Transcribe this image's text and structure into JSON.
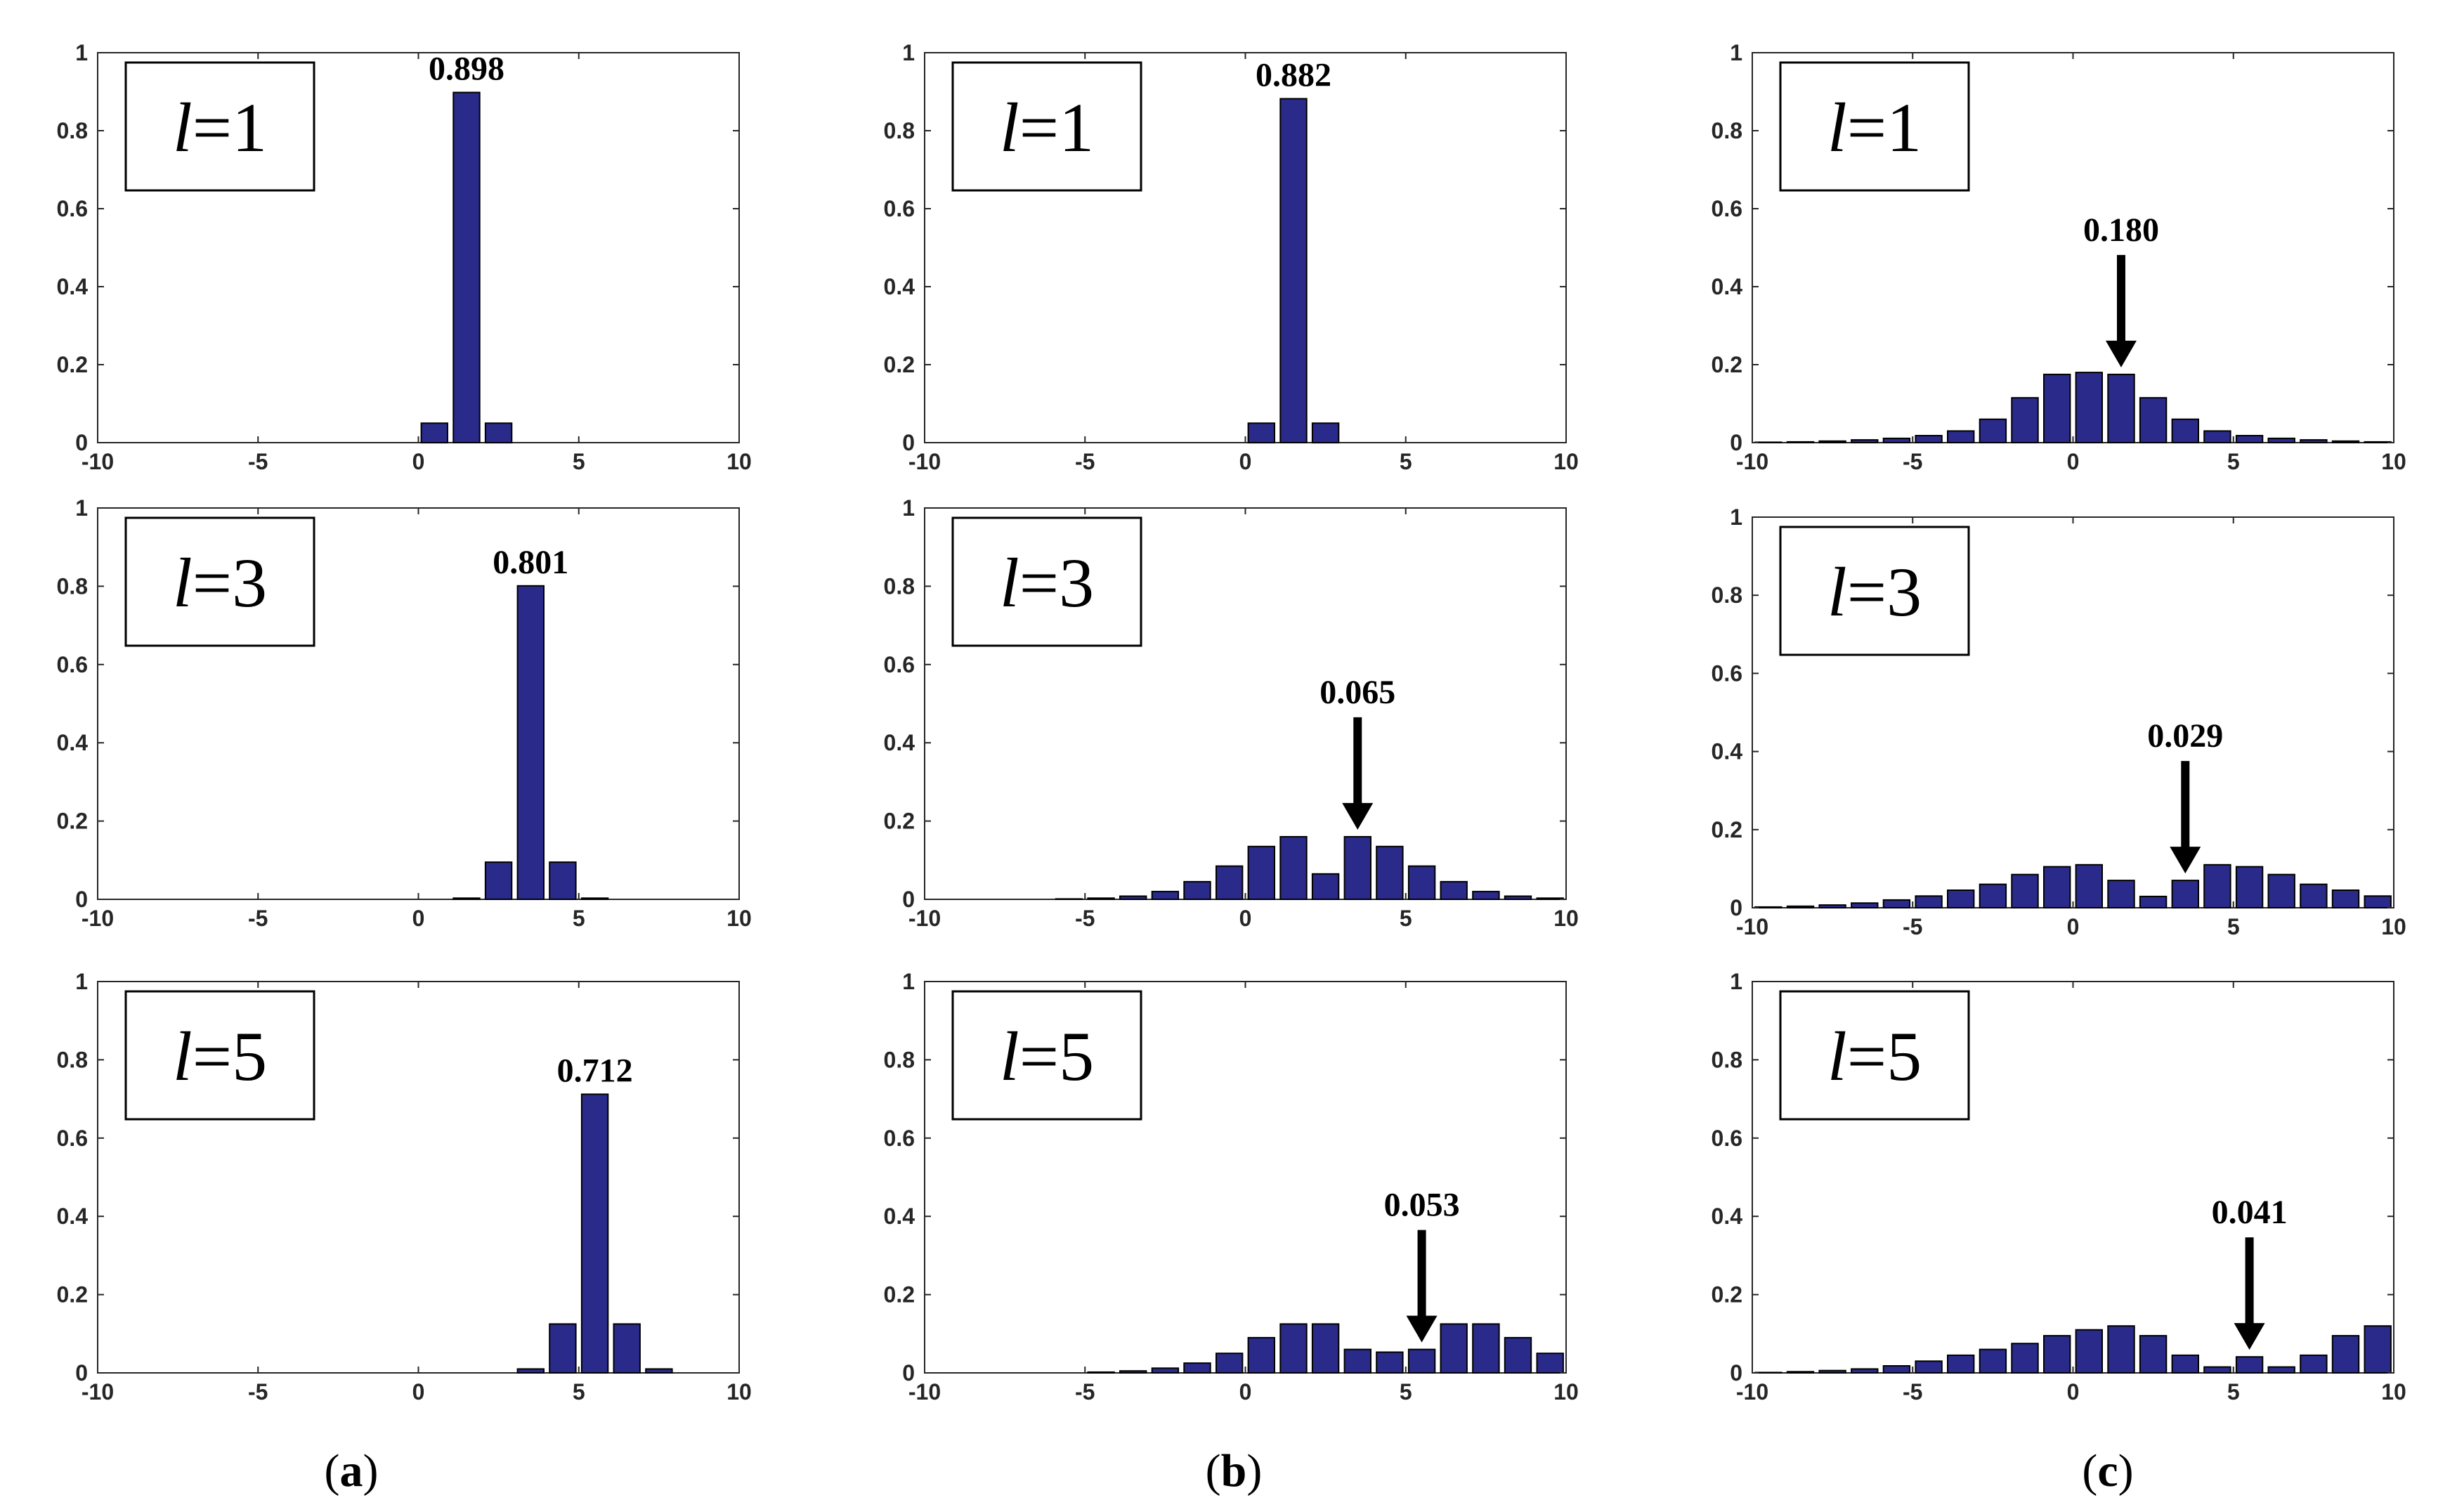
{
  "figure": {
    "captions": [
      "a",
      "b",
      "c"
    ],
    "bar_color": "#2a2a8a",
    "x_ticks": [
      "-10",
      "-5",
      "0",
      "5",
      "10"
    ],
    "y_ticks": [
      "0",
      "0.2",
      "0.4",
      "0.6",
      "0.8",
      "1"
    ]
  },
  "chart_data": [
    {
      "id": "a1",
      "type": "bar",
      "column": "a",
      "legend": "l=1",
      "label_var": "l",
      "label_value": "=1",
      "xlim": [
        -10,
        10
      ],
      "ylim": [
        0,
        1
      ],
      "x": [
        -10,
        -9,
        -8,
        -7,
        -6,
        -5,
        -4,
        -3,
        -2,
        -1,
        0,
        1,
        2,
        3,
        4,
        5,
        6,
        7,
        8,
        9
      ],
      "values": [
        0,
        0,
        0,
        0,
        0,
        0,
        0,
        0,
        0,
        0,
        0.05,
        0.898,
        0.05,
        0,
        0,
        0,
        0,
        0,
        0,
        0
      ],
      "annotation": {
        "text": "0.898",
        "x": 1,
        "arrow": false
      }
    },
    {
      "id": "a3",
      "type": "bar",
      "column": "a",
      "legend": "l=3",
      "label_var": "l",
      "label_value": "=3",
      "xlim": [
        -10,
        10
      ],
      "ylim": [
        0,
        1
      ],
      "x": [
        -10,
        -9,
        -8,
        -7,
        -6,
        -5,
        -4,
        -3,
        -2,
        -1,
        0,
        1,
        2,
        3,
        4,
        5,
        6,
        7,
        8,
        9
      ],
      "values": [
        0,
        0,
        0,
        0,
        0,
        0,
        0,
        0,
        0,
        0,
        0,
        0.003,
        0.095,
        0.801,
        0.095,
        0.003,
        0,
        0,
        0,
        0
      ],
      "annotation": {
        "text": "0.801",
        "x": 3,
        "arrow": false
      }
    },
    {
      "id": "a5",
      "type": "bar",
      "column": "a",
      "legend": "l=5",
      "label_var": "l",
      "label_value": "=5",
      "xlim": [
        -10,
        10
      ],
      "ylim": [
        0,
        1
      ],
      "x": [
        -10,
        -9,
        -8,
        -7,
        -6,
        -5,
        -4,
        -3,
        -2,
        -1,
        0,
        1,
        2,
        3,
        4,
        5,
        6,
        7,
        8,
        9
      ],
      "values": [
        0,
        0,
        0,
        0,
        0,
        0,
        0,
        0,
        0,
        0,
        0,
        0,
        0,
        0.01,
        0.125,
        0.712,
        0.125,
        0.01,
        0,
        0
      ],
      "annotation": {
        "text": "0.712",
        "x": 5,
        "arrow": false
      }
    },
    {
      "id": "b1",
      "type": "bar",
      "column": "b",
      "legend": "l=1",
      "label_var": "l",
      "label_value": "=1",
      "xlim": [
        -10,
        10
      ],
      "ylim": [
        0,
        1
      ],
      "x": [
        -10,
        -9,
        -8,
        -7,
        -6,
        -5,
        -4,
        -3,
        -2,
        -1,
        0,
        1,
        2,
        3,
        4,
        5,
        6,
        7,
        8,
        9
      ],
      "values": [
        0,
        0,
        0,
        0,
        0,
        0,
        0,
        0,
        0,
        0,
        0.05,
        0.882,
        0.05,
        0,
        0,
        0,
        0,
        0,
        0,
        0
      ],
      "annotation": {
        "text": "0.882",
        "x": 1,
        "arrow": false
      }
    },
    {
      "id": "b3",
      "type": "bar",
      "column": "b",
      "legend": "l=3",
      "label_var": "l",
      "label_value": "=3",
      "xlim": [
        -10,
        10
      ],
      "ylim": [
        0,
        1
      ],
      "x": [
        -10,
        -9,
        -8,
        -7,
        -6,
        -5,
        -4,
        -3,
        -2,
        -1,
        0,
        1,
        2,
        3,
        4,
        5,
        6,
        7,
        8,
        9
      ],
      "values": [
        0,
        0,
        0,
        0,
        0.001,
        0.003,
        0.008,
        0.02,
        0.045,
        0.085,
        0.135,
        0.16,
        0.065,
        0.16,
        0.135,
        0.085,
        0.045,
        0.02,
        0.008,
        0.003
      ],
      "annotation": {
        "text": "0.065",
        "x": 3,
        "arrow": true
      }
    },
    {
      "id": "b5",
      "type": "bar",
      "column": "b",
      "legend": "l=5",
      "label_var": "l",
      "label_value": "=5",
      "xlim": [
        -10,
        10
      ],
      "ylim": [
        0,
        1
      ],
      "x": [
        -10,
        -9,
        -8,
        -7,
        -6,
        -5,
        -4,
        -3,
        -2,
        -1,
        0,
        1,
        2,
        3,
        4,
        5,
        6,
        7,
        8,
        9
      ],
      "values": [
        0,
        0,
        0,
        0,
        0,
        0.002,
        0.005,
        0.012,
        0.025,
        0.05,
        0.09,
        0.125,
        0.125,
        0.06,
        0.053,
        0.06,
        0.125,
        0.125,
        0.09,
        0.05
      ],
      "annotation": {
        "text": "0.053",
        "x": 5,
        "arrow": true
      }
    },
    {
      "id": "c1",
      "type": "bar",
      "column": "c",
      "legend": "l=1",
      "label_var": "l",
      "label_value": "=1",
      "xlim": [
        -10,
        10
      ],
      "ylim": [
        0,
        1
      ],
      "x": [
        -10,
        -9,
        -8,
        -7,
        -6,
        -5,
        -4,
        -3,
        -2,
        -1,
        0,
        1,
        2,
        3,
        4,
        5,
        6,
        7,
        8,
        9
      ],
      "values": [
        0.001,
        0.002,
        0.004,
        0.007,
        0.011,
        0.018,
        0.03,
        0.06,
        0.115,
        0.175,
        0.18,
        0.175,
        0.115,
        0.06,
        0.03,
        0.018,
        0.011,
        0.007,
        0.004,
        0.002
      ],
      "annotation": {
        "text": "0.180",
        "x": 1,
        "arrow": true
      }
    },
    {
      "id": "c3",
      "type": "bar",
      "column": "c",
      "legend": "l=3",
      "label_var": "l",
      "label_value": "=3",
      "xlim": [
        -10,
        10
      ],
      "ylim": [
        0,
        1
      ],
      "x": [
        -10,
        -9,
        -8,
        -7,
        -6,
        -5,
        -4,
        -3,
        -2,
        -1,
        0,
        1,
        2,
        3,
        4,
        5,
        6,
        7,
        8,
        9
      ],
      "values": [
        0.002,
        0.004,
        0.007,
        0.012,
        0.02,
        0.03,
        0.045,
        0.06,
        0.085,
        0.105,
        0.11,
        0.07,
        0.029,
        0.07,
        0.11,
        0.105,
        0.085,
        0.06,
        0.045,
        0.03
      ],
      "annotation": {
        "text": "0.029",
        "x": 3,
        "arrow": true
      }
    },
    {
      "id": "c5",
      "type": "bar",
      "column": "c",
      "legend": "l=5",
      "label_var": "l",
      "label_value": "=5",
      "xlim": [
        -10,
        10
      ],
      "ylim": [
        0,
        1
      ],
      "x": [
        -10,
        -9,
        -8,
        -7,
        -6,
        -5,
        -4,
        -3,
        -2,
        -1,
        0,
        1,
        2,
        3,
        4,
        5,
        6,
        7,
        8,
        9
      ],
      "values": [
        0.001,
        0.003,
        0.006,
        0.01,
        0.018,
        0.03,
        0.045,
        0.06,
        0.075,
        0.095,
        0.11,
        0.12,
        0.095,
        0.045,
        0.015,
        0.041,
        0.015,
        0.045,
        0.095,
        0.12
      ],
      "annotation": {
        "text": "0.041",
        "x": 5,
        "arrow": true
      }
    }
  ]
}
